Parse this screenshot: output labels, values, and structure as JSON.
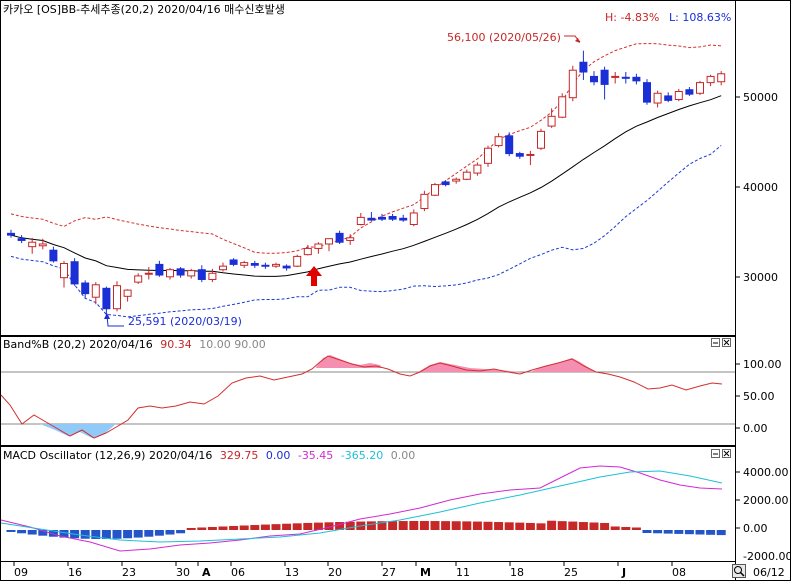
{
  "colors": {
    "up_candle": "#c62828",
    "down_candle": "#1a2fd6",
    "upper_band": "#d32f2f",
    "lower_band": "#1e3ad6",
    "middle_band": "#000000",
    "bandb_line": "#d32f2f",
    "bandb_fill_high": "#f48fb1",
    "bandb_fill_low": "#90caf9",
    "macd_line": "#d12ad1",
    "signal_line": "#1ec0d6",
    "hist_pos": "#c62828",
    "hist_neg": "#2355c8",
    "arrow": "#e00000",
    "grid_bg": "#ffffff",
    "panel_border": "#000000"
  },
  "price_panel": {
    "title": "카카오 [OS]BB-추세추종(20,2)  2020/04/16 매수신호발생",
    "hl_high": "H: -4.83%",
    "hl_low": "L: 108.63%",
    "annotation_high": "56,100 (2020/05/26)",
    "annotation_low": "25,591 (2020/03/19)",
    "y_ticks": [
      "50000",
      "40000",
      "30000"
    ],
    "y_tick_values": [
      50000,
      40000,
      30000
    ]
  },
  "bandb_panel": {
    "title": "Band%B  (20,2) 2020/04/16",
    "value": "90.34",
    "levels": "10.00 90.00",
    "y_ticks": [
      "100.00",
      "50.00",
      "0.00"
    ]
  },
  "macd_panel": {
    "title": "MACD Oscillator  (12,26,9) 2020/04/16",
    "value_osc": "329.75",
    "value_zero": "0.00",
    "value_macd": "-35.45",
    "value_signal": "-365.20",
    "value_last": "0.00",
    "y_ticks": [
      "4000.00",
      "2000.00",
      "0.00",
      "-2000.00"
    ]
  },
  "x_axis": {
    "labels": [
      "09",
      "16",
      "23",
      "30",
      "A",
      "06",
      "13",
      "20",
      "27",
      "M",
      "11",
      "18",
      "25",
      "J",
      "08"
    ],
    "last_date": "06/12"
  },
  "chart_data": {
    "type": "candlestick",
    "candles": [
      {
        "o": 35500,
        "h": 35900,
        "l": 35000,
        "c": 35300
      },
      {
        "o": 34900,
        "h": 35300,
        "l": 34400,
        "c": 34700
      },
      {
        "o": 34000,
        "h": 35000,
        "l": 33200,
        "c": 34500
      },
      {
        "o": 34100,
        "h": 34900,
        "l": 33700,
        "c": 34300
      },
      {
        "o": 33600,
        "h": 34000,
        "l": 32200,
        "c": 32400
      },
      {
        "o": 30500,
        "h": 32400,
        "l": 29400,
        "c": 32100
      },
      {
        "o": 32300,
        "h": 32700,
        "l": 29600,
        "c": 29800
      },
      {
        "o": 29900,
        "h": 30200,
        "l": 28200,
        "c": 28700
      },
      {
        "o": 28300,
        "h": 30000,
        "l": 27500,
        "c": 29700
      },
      {
        "o": 29300,
        "h": 29500,
        "l": 26000,
        "c": 27000
      },
      {
        "o": 27000,
        "h": 30100,
        "l": 26700,
        "c": 29600
      },
      {
        "o": 28400,
        "h": 29200,
        "l": 27800,
        "c": 29100
      },
      {
        "o": 30000,
        "h": 31000,
        "l": 29800,
        "c": 30700
      },
      {
        "o": 30900,
        "h": 31700,
        "l": 30300,
        "c": 31000
      },
      {
        "o": 32000,
        "h": 32400,
        "l": 30600,
        "c": 30800
      },
      {
        "o": 30600,
        "h": 31600,
        "l": 30300,
        "c": 31400
      },
      {
        "o": 31500,
        "h": 31700,
        "l": 30500,
        "c": 30800
      },
      {
        "o": 30700,
        "h": 31500,
        "l": 30400,
        "c": 31300
      },
      {
        "o": 31400,
        "h": 31900,
        "l": 30000,
        "c": 30300
      },
      {
        "o": 30300,
        "h": 31500,
        "l": 30000,
        "c": 31000
      },
      {
        "o": 31400,
        "h": 32200,
        "l": 31200,
        "c": 31800
      },
      {
        "o": 32500,
        "h": 32700,
        "l": 31800,
        "c": 32000
      },
      {
        "o": 31900,
        "h": 32400,
        "l": 31600,
        "c": 32200
      },
      {
        "o": 32100,
        "h": 32400,
        "l": 31600,
        "c": 31900
      },
      {
        "o": 31900,
        "h": 32200,
        "l": 31500,
        "c": 31800
      },
      {
        "o": 31800,
        "h": 32200,
        "l": 31600,
        "c": 32000
      },
      {
        "o": 31800,
        "h": 32000,
        "l": 31300,
        "c": 31600
      },
      {
        "o": 31800,
        "h": 33100,
        "l": 31700,
        "c": 32900
      },
      {
        "o": 33100,
        "h": 34200,
        "l": 33000,
        "c": 33800
      },
      {
        "o": 33800,
        "h": 34500,
        "l": 33200,
        "c": 34300
      },
      {
        "o": 34300,
        "h": 34900,
        "l": 33500,
        "c": 34900
      },
      {
        "o": 35500,
        "h": 35800,
        "l": 34300,
        "c": 34500
      },
      {
        "o": 34700,
        "h": 35400,
        "l": 34200,
        "c": 35000
      },
      {
        "o": 36500,
        "h": 37800,
        "l": 36400,
        "c": 37300
      },
      {
        "o": 37200,
        "h": 37900,
        "l": 36900,
        "c": 37000
      },
      {
        "o": 37300,
        "h": 37700,
        "l": 36900,
        "c": 37100
      },
      {
        "o": 37400,
        "h": 37700,
        "l": 36900,
        "c": 37100
      },
      {
        "o": 37200,
        "h": 37600,
        "l": 36800,
        "c": 37000
      },
      {
        "o": 36500,
        "h": 38200,
        "l": 36300,
        "c": 37800
      },
      {
        "o": 38300,
        "h": 40300,
        "l": 38000,
        "c": 39900
      },
      {
        "o": 39800,
        "h": 41200,
        "l": 39700,
        "c": 41000
      },
      {
        "o": 41300,
        "h": 41500,
        "l": 40800,
        "c": 41000
      },
      {
        "o": 41400,
        "h": 41800,
        "l": 41100,
        "c": 41600
      },
      {
        "o": 41600,
        "h": 42700,
        "l": 41500,
        "c": 42400
      },
      {
        "o": 42300,
        "h": 43500,
        "l": 42000,
        "c": 43200
      },
      {
        "o": 43400,
        "h": 45400,
        "l": 43000,
        "c": 45100
      },
      {
        "o": 45400,
        "h": 46800,
        "l": 45200,
        "c": 46400
      },
      {
        "o": 46500,
        "h": 46900,
        "l": 44200,
        "c": 44500
      },
      {
        "o": 44500,
        "h": 44700,
        "l": 43900,
        "c": 44200
      },
      {
        "o": 44300,
        "h": 44800,
        "l": 43200,
        "c": 44400
      },
      {
        "o": 45100,
        "h": 47300,
        "l": 44900,
        "c": 47000
      },
      {
        "o": 47600,
        "h": 49600,
        "l": 47400,
        "c": 48700
      },
      {
        "o": 48600,
        "h": 51300,
        "l": 48500,
        "c": 50900
      },
      {
        "o": 50800,
        "h": 54400,
        "l": 50400,
        "c": 53900
      },
      {
        "o": 54800,
        "h": 56100,
        "l": 52800,
        "c": 53700
      },
      {
        "o": 53200,
        "h": 53800,
        "l": 52200,
        "c": 52600
      },
      {
        "o": 53900,
        "h": 54300,
        "l": 50600,
        "c": 52300
      },
      {
        "o": 53200,
        "h": 53700,
        "l": 52400,
        "c": 53200
      },
      {
        "o": 53100,
        "h": 53700,
        "l": 52400,
        "c": 53000
      },
      {
        "o": 53100,
        "h": 53500,
        "l": 52300,
        "c": 52700
      },
      {
        "o": 52500,
        "h": 52900,
        "l": 50000,
        "c": 50300
      },
      {
        "o": 50200,
        "h": 51600,
        "l": 49700,
        "c": 51300
      },
      {
        "o": 51000,
        "h": 51400,
        "l": 50300,
        "c": 50500
      },
      {
        "o": 50600,
        "h": 51800,
        "l": 50400,
        "c": 51500
      },
      {
        "o": 51700,
        "h": 52000,
        "l": 51000,
        "c": 51200
      },
      {
        "o": 51300,
        "h": 52700,
        "l": 51100,
        "c": 52500
      },
      {
        "o": 52500,
        "h": 53400,
        "l": 52100,
        "c": 53200
      },
      {
        "o": 52600,
        "h": 53800,
        "l": 52200,
        "c": 53500
      }
    ],
    "ylim": [
      24600,
      59000
    ],
    "grid": false,
    "legend": "none"
  }
}
